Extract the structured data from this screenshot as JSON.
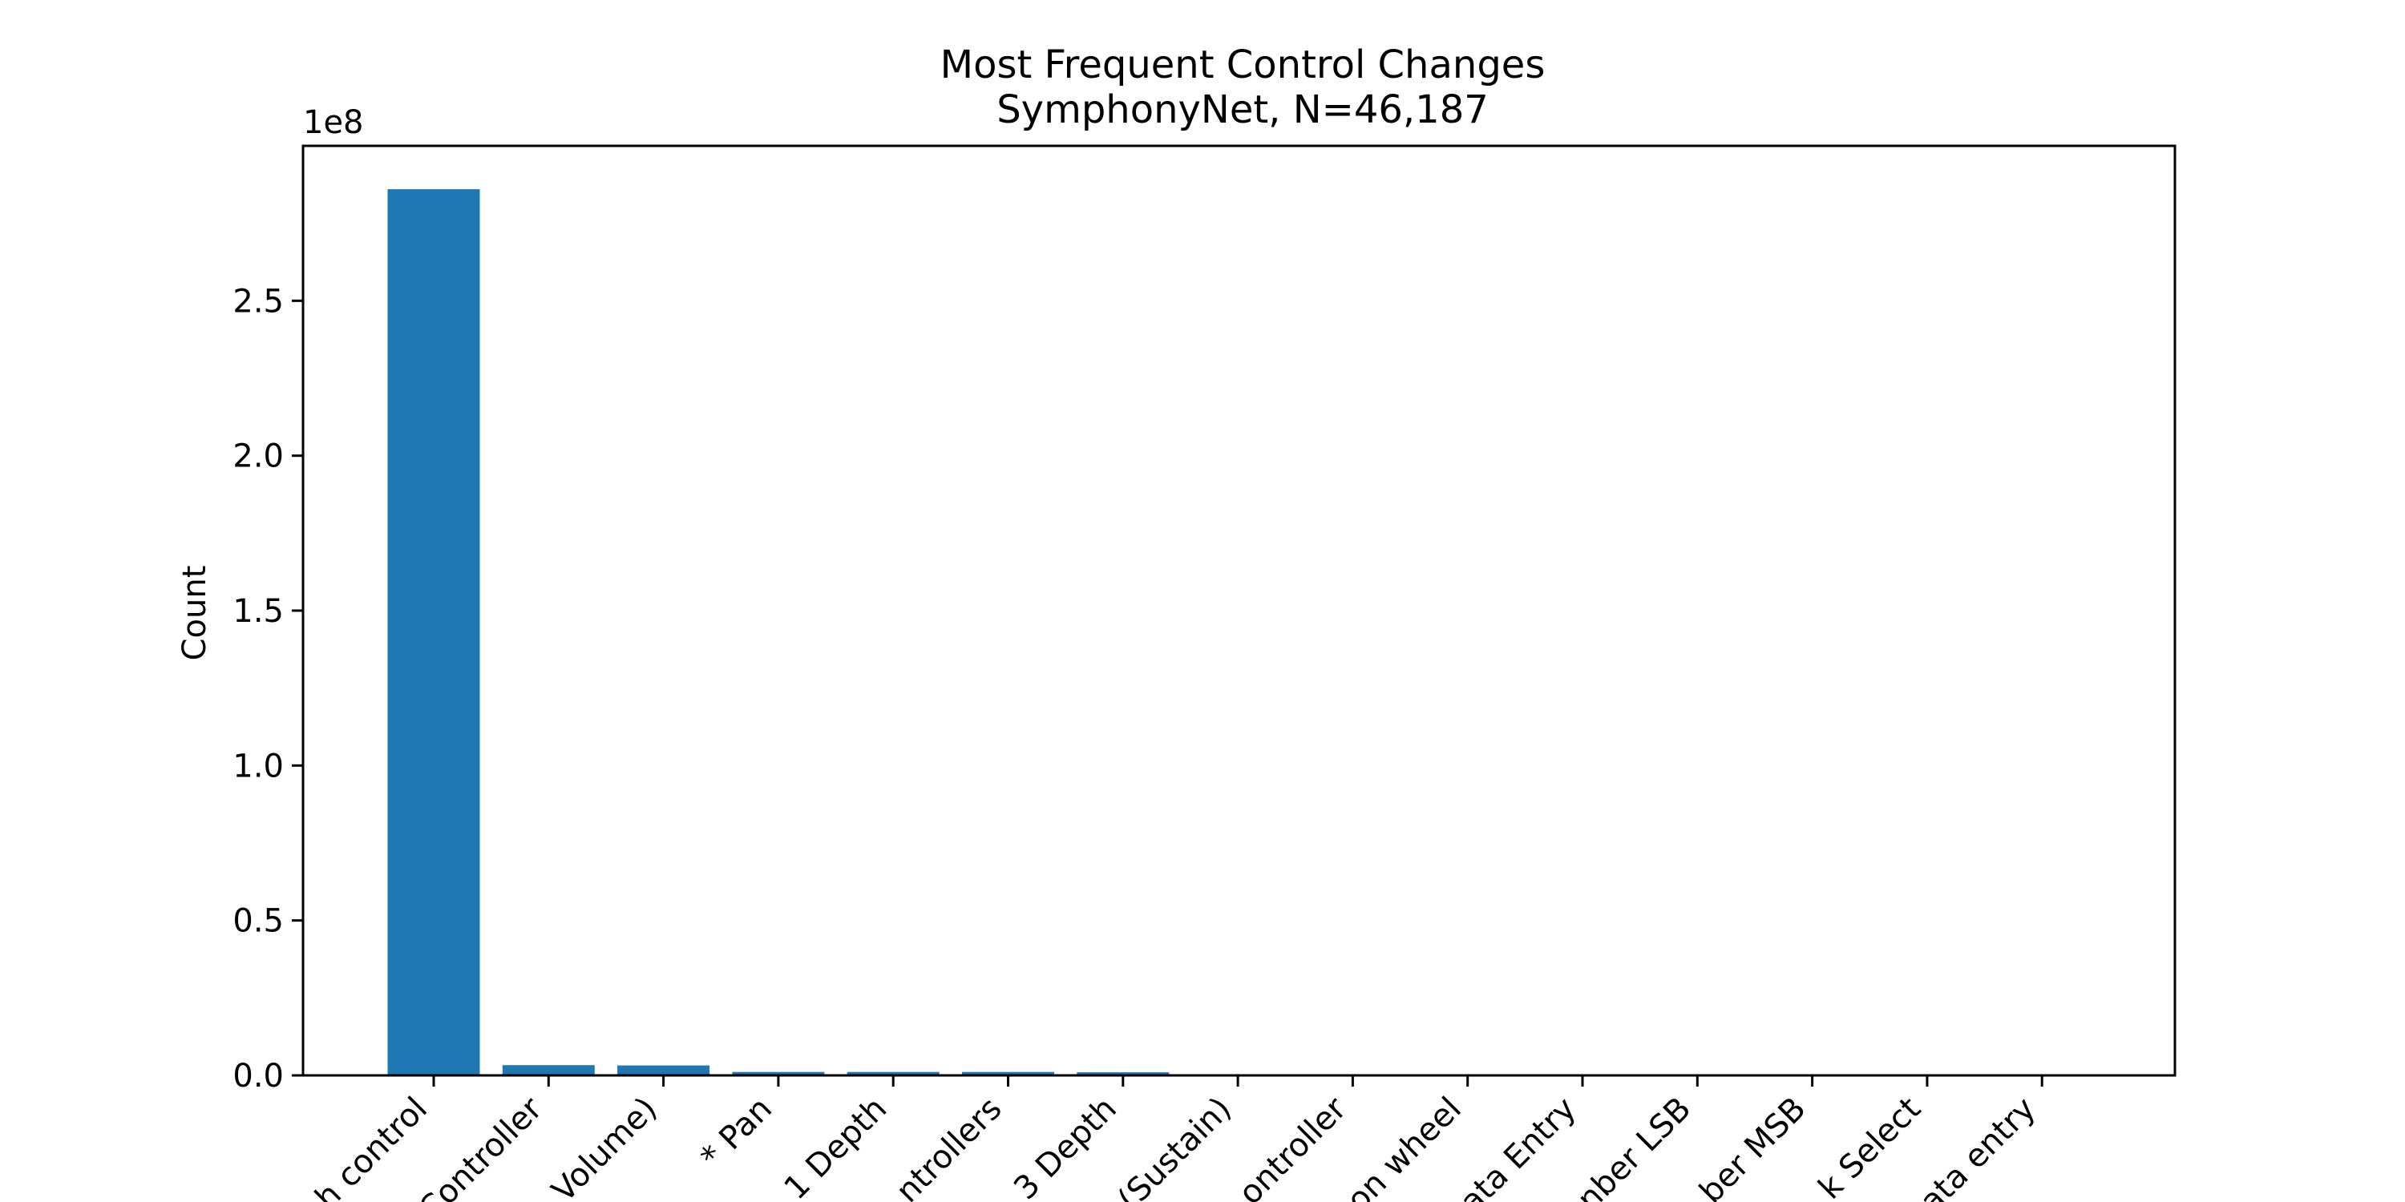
{
  "chart_data": {
    "type": "bar",
    "title": "Most Frequent Control Changes",
    "subtitle": "SymphonyNet, N=46,187",
    "xlabel": "",
    "ylabel": "Count",
    "y_offset_label": "1e8",
    "ylim": [
      0,
      3.0
    ],
    "yticks": [
      "0.0",
      "0.5",
      "1.0",
      "1.5",
      "2.0",
      "2.5"
    ],
    "grid": false,
    "legend": "none",
    "categories": [
      "h control",
      "Controller",
      "Volume)",
      "* Pan",
      "1 Depth",
      "ntrollers",
      "3 Depth",
      "(Sustain)",
      "ontroller",
      "on wheel",
      "ata Entry",
      "nber LSB",
      "ber MSB",
      "k Select",
      "ata entry"
    ],
    "values": [
      2.86,
      0.033,
      0.032,
      0.011,
      0.011,
      0.011,
      0.01,
      0.0008,
      0.0006,
      0.0005,
      0.0004,
      0.0003,
      0.0003,
      0.0002,
      0.0002
    ],
    "bar_color": "#1f77b4"
  }
}
